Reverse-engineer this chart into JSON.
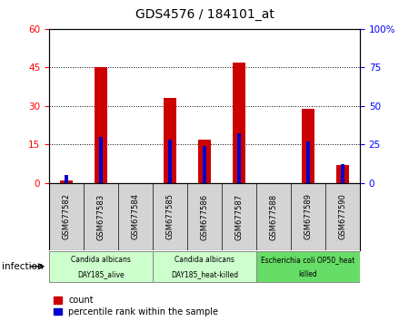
{
  "title": "GDS4576 / 184101_at",
  "samples": [
    "GSM677582",
    "GSM677583",
    "GSM677584",
    "GSM677585",
    "GSM677586",
    "GSM677587",
    "GSM677588",
    "GSM677589",
    "GSM677590"
  ],
  "counts": [
    1,
    45,
    0,
    33,
    17,
    47,
    0,
    29,
    7
  ],
  "percentiles": [
    5,
    30,
    0,
    28,
    24,
    32,
    0,
    27,
    12
  ],
  "ylim_left": [
    0,
    60
  ],
  "ylim_right": [
    0,
    100
  ],
  "yticks_left": [
    0,
    15,
    30,
    45,
    60
  ],
  "yticks_right": [
    0,
    25,
    50,
    75,
    100
  ],
  "groups": [
    {
      "label": "Candida albicans\nDAY185_alive",
      "start": 0,
      "end": 3,
      "color": "#ccffcc"
    },
    {
      "label": "Candida albicans\nDAY185_heat-killed",
      "start": 3,
      "end": 6,
      "color": "#ccffcc"
    },
    {
      "label": "Escherichia coli OP50_heat\nkilled",
      "start": 6,
      "end": 9,
      "color": "#66dd66"
    }
  ],
  "bar_color_red": "#cc0000",
  "bar_color_blue": "#0000cc",
  "bar_width": 0.35,
  "blue_bar_width": 0.12,
  "background_color": "#ffffff",
  "plot_bg_color": "#ffffff",
  "tick_box_color": "#d4d4d4",
  "label_infection": "infection",
  "legend_count": "count",
  "legend_percentile": "percentile rank within the sample"
}
